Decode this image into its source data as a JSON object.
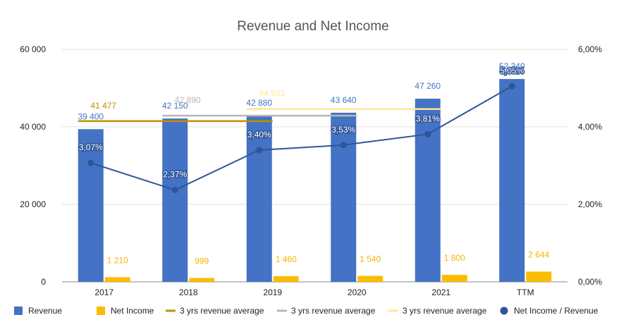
{
  "chart_data": {
    "type": "bar",
    "title": "Revenue and Net Income",
    "categories": [
      "2017",
      "2018",
      "2019",
      "2020",
      "2021",
      "TTM"
    ],
    "y_left": {
      "ticks": [
        "0",
        "20 000",
        "40 000",
        "60 000"
      ],
      "range": [
        0,
        60000
      ]
    },
    "y_right": {
      "ticks": [
        "0,00%",
        "2,00%",
        "4,00%",
        "6,00%"
      ],
      "range": [
        0,
        6
      ]
    },
    "grid": true,
    "legend_position": "bottom",
    "series": [
      {
        "name": "Revenue",
        "kind": "bar",
        "color": "#4472c4",
        "label_color": "#4472c4",
        "values": [
          39400,
          42150,
          42880,
          43640,
          47260,
          52340
        ],
        "labels": [
          "39 400",
          "42 150",
          "42 880",
          "43 640",
          "47 260",
          "52 340"
        ]
      },
      {
        "name": "Net Income",
        "kind": "bar",
        "color": "#fbbc04",
        "label_color": "#f6b400",
        "values": [
          1210,
          999,
          1460,
          1540,
          1800,
          2644
        ],
        "labels": [
          "1 210",
          "999",
          "1 460",
          "1 540",
          "1 800",
          "2 644"
        ]
      },
      {
        "name": "3 yrs revenue average",
        "kind": "avgline",
        "color": "#bf9000",
        "value": 41477,
        "label": "41 477",
        "span": [
          "2017",
          "2019"
        ]
      },
      {
        "name": "3 yrs revenue average",
        "kind": "avgline",
        "color": "#b7b7b7",
        "value": 42890,
        "label": "42 890",
        "span": [
          "2018",
          "2020"
        ]
      },
      {
        "name": "3 yrs revenue average",
        "kind": "avgline",
        "color": "#ffe599",
        "value": 44593,
        "label": "44 593",
        "span": [
          "2019",
          "2021"
        ]
      },
      {
        "name": "Net Income / Revenue",
        "kind": "line",
        "axis": "right",
        "color": "#2f5597",
        "values": [
          3.07,
          2.37,
          3.4,
          3.53,
          3.81,
          5.05
        ],
        "labels": [
          "3,07%",
          "2,37%",
          "3,40%",
          "3,53%",
          "3,81%",
          "5,05%"
        ]
      }
    ]
  }
}
